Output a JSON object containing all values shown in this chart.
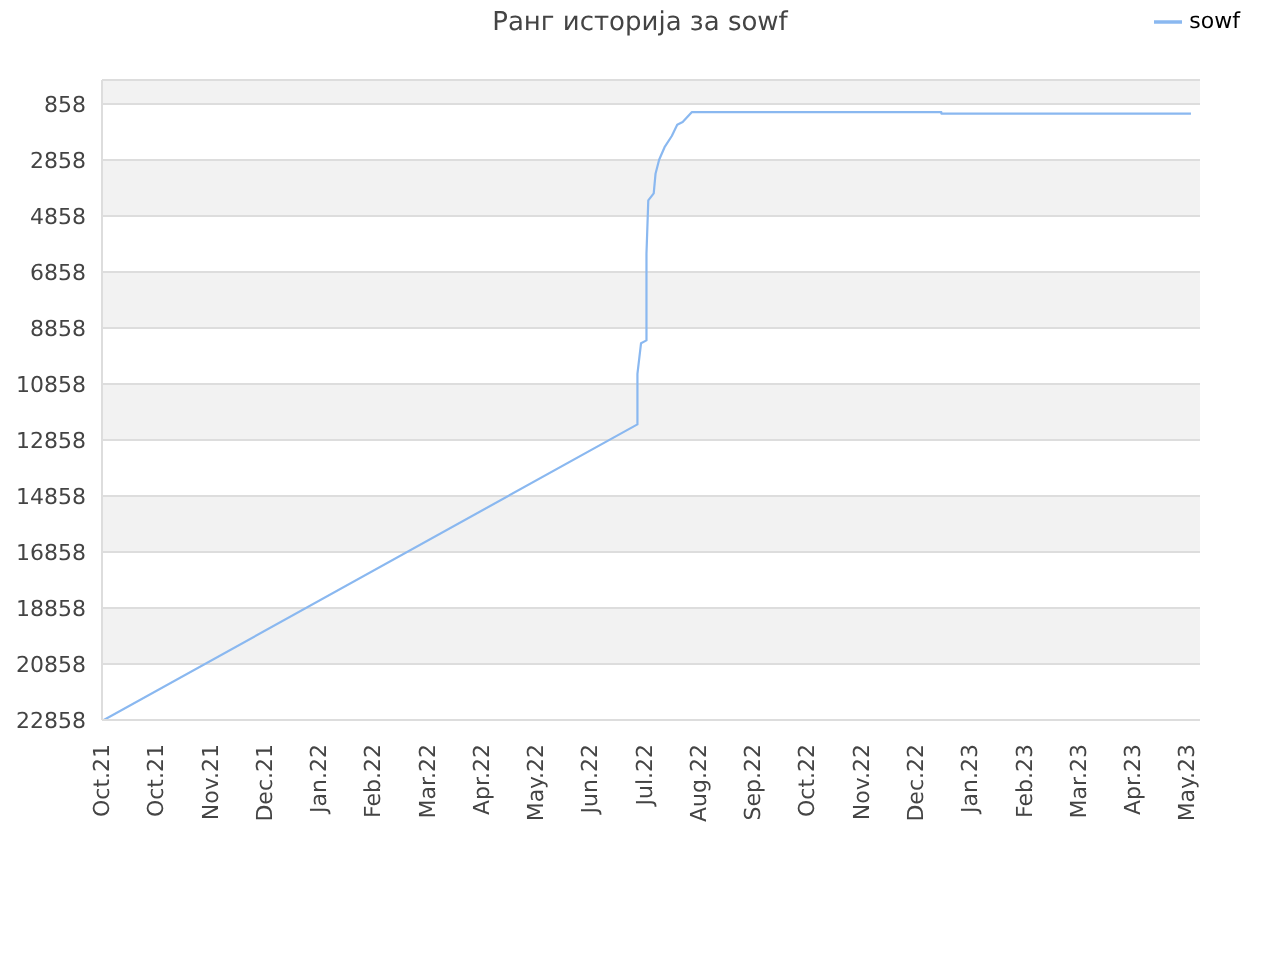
{
  "chart_data": {
    "type": "line",
    "title": "Ранг историја за sowf",
    "x": [
      "2021-10-02",
      "2022-07-24",
      "2022-07-24",
      "2022-07-26",
      "2022-07-29",
      "2022-07-29",
      "2022-07-30",
      "2022-08-02",
      "2022-08-03",
      "2022-08-05",
      "2022-08-08",
      "2022-08-12",
      "2022-08-15",
      "2022-08-18",
      "2022-08-23",
      "2023-01-08",
      "2023-01-08",
      "2023-05-26"
    ],
    "series": [
      {
        "name": "sowf",
        "color": "#8ab8f0",
        "values": [
          22858,
          12300,
          10500,
          9400,
          9300,
          6200,
          4300,
          4050,
          3350,
          2850,
          2400,
          2000,
          1600,
          1500,
          1150,
          1150,
          1200,
          1200
        ]
      }
    ],
    "xlim": [
      "2021-10-01",
      "2023-05-31"
    ],
    "xticks": [
      {
        "value": "2021-10-01",
        "label": "Oct.21"
      },
      {
        "value": "2021-10-31",
        "label": "Oct.21"
      },
      {
        "value": "2021-11-30",
        "label": "Nov.21"
      },
      {
        "value": "2021-12-30",
        "label": "Dec.21"
      },
      {
        "value": "2022-01-29",
        "label": "Jan.22"
      },
      {
        "value": "2022-02-28",
        "label": "Feb.22"
      },
      {
        "value": "2022-03-30",
        "label": "Mar.22"
      },
      {
        "value": "2022-04-29",
        "label": "Apr.22"
      },
      {
        "value": "2022-05-29",
        "label": "May.22"
      },
      {
        "value": "2022-06-28",
        "label": "Jun.22"
      },
      {
        "value": "2022-07-28",
        "label": "Jul.22"
      },
      {
        "value": "2022-08-27",
        "label": "Aug.22"
      },
      {
        "value": "2022-09-26",
        "label": "Sep.22"
      },
      {
        "value": "2022-10-26",
        "label": "Oct.22"
      },
      {
        "value": "2022-11-25",
        "label": "Nov.22"
      },
      {
        "value": "2022-12-25",
        "label": "Dec.22"
      },
      {
        "value": "2023-01-24",
        "label": "Jan.23"
      },
      {
        "value": "2023-02-23",
        "label": "Feb.23"
      },
      {
        "value": "2023-03-25",
        "label": "Mar.23"
      },
      {
        "value": "2023-04-24",
        "label": "Apr.23"
      },
      {
        "value": "2023-05-24",
        "label": "May.23"
      }
    ],
    "ylim": [
      22858,
      0
    ],
    "yticks": [
      858,
      2858,
      4858,
      6858,
      8858,
      10858,
      12858,
      14858,
      16858,
      18858,
      20858,
      22858
    ],
    "grid": "y",
    "legend": "top right",
    "marker": "none",
    "line_style": "solid"
  }
}
